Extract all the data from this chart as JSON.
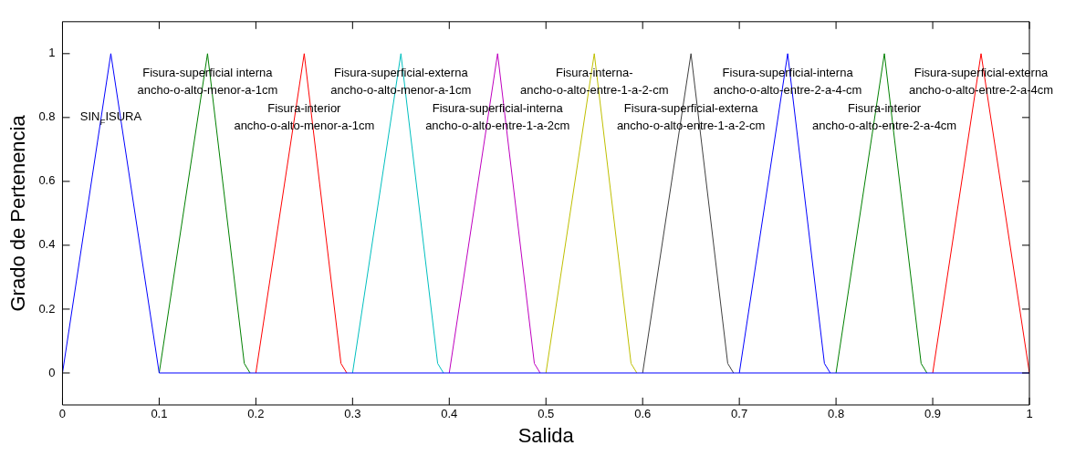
{
  "chart_data": {
    "type": "line",
    "xlabel": "Salida",
    "ylabel": "Grado de Pertenencia",
    "xlim": [
      0,
      1
    ],
    "ylim": [
      -0.1,
      1.1
    ],
    "xticks": [
      0,
      0.1,
      0.2,
      0.3,
      0.4,
      0.5,
      0.6,
      0.7,
      0.8,
      0.9,
      1
    ],
    "yticks": [
      0,
      0.2,
      0.4,
      0.6,
      0.8,
      1
    ],
    "grid": false,
    "legend": false,
    "marker": "none",
    "line_style": "solid",
    "series": [
      {
        "name": "SIN$_{F}$ISURA",
        "color": "#0000ff",
        "x": [
          0,
          0.05,
          0.1,
          1
        ],
        "values": [
          0,
          1,
          0,
          0
        ]
      },
      {
        "name": "Fisura-superficial interna\nancho-o-alto-menor-a-1cm",
        "color": "#008000",
        "x": [
          0.1,
          0.15,
          0.188,
          0.194
        ],
        "values": [
          0,
          1,
          0.03,
          0
        ]
      },
      {
        "name": "Fisura-interior\nancho-o-alto-menor-a-1cm",
        "color": "#ff0000",
        "x": [
          0.2,
          0.25,
          0.288,
          0.294
        ],
        "values": [
          0,
          1,
          0.03,
          0
        ]
      },
      {
        "name": "Fisura-superficial-externa\nancho-o-alto-menor-a-1cm",
        "color": "#00bfbf",
        "x": [
          0.3,
          0.35,
          0.388,
          0.394
        ],
        "values": [
          0,
          1,
          0.03,
          0
        ]
      },
      {
        "name": "Fisura-superficial-interna\nancho-o-alto-entre-1-a-2cm",
        "color": "#bf00bf",
        "x": [
          0.4,
          0.45,
          0.488,
          0.494
        ],
        "values": [
          0,
          1,
          0.03,
          0
        ]
      },
      {
        "name": "Fisura-interna-\nancho-o-alto-entre-1-a-2-cm",
        "color": "#bfbf00",
        "x": [
          0.5,
          0.55,
          0.588,
          0.594
        ],
        "values": [
          0,
          1,
          0.03,
          0
        ]
      },
      {
        "name": "Fisura-superficial-externa\nancho-o-alto-entre-1-a-2-cm",
        "color": "#404040",
        "x": [
          0.6,
          0.65,
          0.688,
          0.694
        ],
        "values": [
          0,
          1,
          0.03,
          0
        ]
      },
      {
        "name": "Fisura-superficial-interna\nancho-o-alto-entre-2-a-4-cm",
        "color": "#0000ff",
        "x": [
          0.7,
          0.75,
          0.788,
          0.794
        ],
        "values": [
          0,
          1,
          0.03,
          0
        ]
      },
      {
        "name": "Fisura-interior\nancho-o-alto-entre-2-a-4cm",
        "color": "#008000",
        "x": [
          0.8,
          0.85,
          0.888,
          0.894
        ],
        "values": [
          0,
          1,
          0.03,
          0
        ]
      },
      {
        "name": "Fisura-superficial-externa\nancho-o-alto-entre-2-a-4cm",
        "color": "#ff0000",
        "x": [
          0.9,
          0.95,
          1
        ],
        "values": [
          0,
          1,
          0
        ]
      }
    ]
  }
}
